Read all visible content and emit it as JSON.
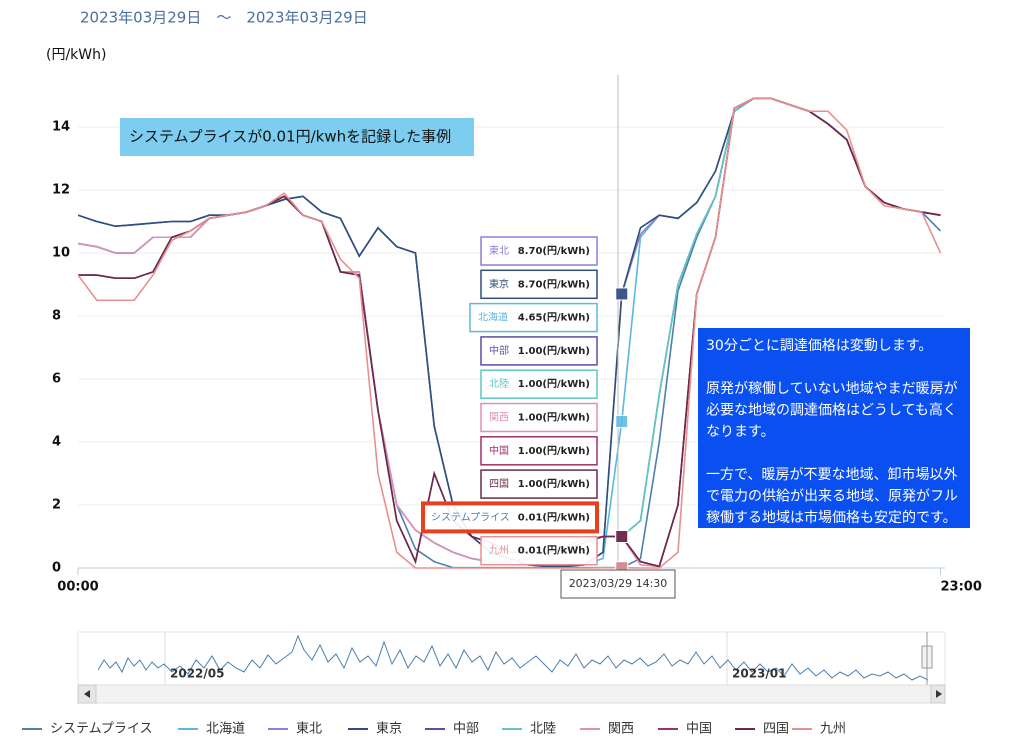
{
  "chart_data": {
    "type": "line",
    "date_range": "2023年03月29日　〜　2023年03月29日",
    "y_label": "(円/kWh)",
    "note": "システムプライスが0.01円/kwhを記録した事例",
    "explanation": [
      "30分ごとに調達価格は変動します。",
      "",
      "原発が稼働していない地域やまだ暖房が",
      "必要な地域の調達価格はどうしても高く",
      "なります。",
      "",
      "一方で、暖房が不要な地域、卸市場以外",
      "で電力の供給が出来る地域、原発がフル",
      "稼働する地域は市場価格も安定的です。"
    ],
    "tooltip_time": "2023/03/29 14:30",
    "navigator_labels": [
      "2022/05",
      "2023/01"
    ],
    "categories": [
      "00:00",
      null,
      null,
      null,
      null,
      null,
      null,
      null,
      null,
      null,
      null,
      null,
      null,
      null,
      null,
      null,
      null,
      null,
      null,
      null,
      null,
      null,
      null,
      null,
      null,
      null,
      null,
      null,
      null,
      null,
      null,
      null,
      null,
      null,
      null,
      null,
      null,
      null,
      null,
      null,
      null,
      null,
      null,
      null,
      null,
      null,
      "23:00"
    ],
    "ylim": [
      0,
      16
    ],
    "yticks": [
      0,
      2,
      4,
      6,
      8,
      10,
      12,
      14
    ],
    "grid": true,
    "series": [
      {
        "name": "システムプライス",
        "color": "#4a7fb0",
        "tooltip_label": "0.01(円/kWh)",
        "values": [
          10.3,
          10.2,
          10.0,
          10.0,
          10.5,
          10.5,
          10.5,
          11.1,
          11.2,
          11.3,
          11.5,
          11.8,
          11.2,
          11.0,
          9.4,
          9.4,
          5.0,
          2.0,
          0.6,
          0.2,
          0.01,
          0.01,
          0.01,
          0.01,
          0.01,
          0.01,
          0.01,
          0.01,
          0.01,
          0.01,
          0.3,
          4.0,
          8.8,
          10.5,
          11.8,
          14.5,
          14.9,
          14.9,
          14.7,
          14.5,
          14.1,
          13.6,
          12.1,
          11.6,
          11.4,
          11.3,
          10.7
        ]
      },
      {
        "name": "北海道",
        "color": "#5bb8e0",
        "tooltip_label": "4.65(円/kWh)",
        "values": [
          11.2,
          11.0,
          10.85,
          10.9,
          10.95,
          11.0,
          11.0,
          11.2,
          11.2,
          11.3,
          11.5,
          11.7,
          11.8,
          11.3,
          11.1,
          9.9,
          10.8,
          10.2,
          10.0,
          4.5,
          2.0,
          1.0,
          0.5,
          0.3,
          0.1,
          0.05,
          0.05,
          0.1,
          0.3,
          4.65,
          10.5,
          11.2,
          11.1,
          11.6,
          12.6,
          14.5,
          14.9,
          14.9,
          14.7,
          14.5,
          14.1,
          13.6,
          12.1,
          11.6,
          11.4,
          11.3,
          11.2
        ]
      },
      {
        "name": "東北",
        "color": "#8b7fd8",
        "tooltip_label": "8.70(円/kWh)",
        "values": [
          11.2,
          11.0,
          10.85,
          10.9,
          10.95,
          11.0,
          11.0,
          11.2,
          11.2,
          11.3,
          11.5,
          11.7,
          11.8,
          11.3,
          11.1,
          9.9,
          10.8,
          10.2,
          10.0,
          4.5,
          2.0,
          1.0,
          0.5,
          0.3,
          0.1,
          0.05,
          0.05,
          0.1,
          0.5,
          8.7,
          10.6,
          11.2,
          11.1,
          11.6,
          12.6,
          14.5,
          14.9,
          14.9,
          14.7,
          14.5,
          14.1,
          13.6,
          12.1,
          11.6,
          11.4,
          11.3,
          11.2
        ]
      },
      {
        "name": "東京",
        "color": "#2f4f7a",
        "tooltip_label": "8.70(円/kWh)",
        "values": [
          11.2,
          11.0,
          10.85,
          10.9,
          10.95,
          11.0,
          11.0,
          11.2,
          11.2,
          11.3,
          11.5,
          11.7,
          11.8,
          11.3,
          11.1,
          9.9,
          10.8,
          10.2,
          10.0,
          4.5,
          2.0,
          1.0,
          0.5,
          0.3,
          0.1,
          0.05,
          0.05,
          0.1,
          0.5,
          8.7,
          10.8,
          11.2,
          11.1,
          11.6,
          12.6,
          14.5,
          14.9,
          14.9,
          14.7,
          14.5,
          14.1,
          13.6,
          12.1,
          11.6,
          11.4,
          11.3,
          11.2
        ]
      },
      {
        "name": "中部",
        "color": "#5a4fa8",
        "tooltip_label": "1.00(円/kWh)",
        "values": [
          10.3,
          10.2,
          10.0,
          10.0,
          10.5,
          10.5,
          10.5,
          11.1,
          11.2,
          11.3,
          11.5,
          11.8,
          11.2,
          11.0,
          9.4,
          9.4,
          5.0,
          2.0,
          1.2,
          0.8,
          0.5,
          0.3,
          0.2,
          0.2,
          0.3,
          0.5,
          0.7,
          0.9,
          1.0,
          1.0,
          1.5,
          5.5,
          9.0,
          10.6,
          11.8,
          14.5,
          14.9,
          14.9,
          14.7,
          14.5,
          14.1,
          13.6,
          12.1,
          11.6,
          11.4,
          11.3,
          11.2
        ]
      },
      {
        "name": "北陸",
        "color": "#5fc8c0",
        "tooltip_label": "1.00(円/kWh)",
        "values": [
          10.3,
          10.2,
          10.0,
          10.0,
          10.5,
          10.5,
          10.5,
          11.1,
          11.2,
          11.3,
          11.5,
          11.8,
          11.2,
          11.0,
          9.4,
          9.4,
          5.0,
          2.0,
          1.2,
          0.8,
          0.5,
          0.3,
          0.2,
          0.2,
          0.3,
          0.5,
          0.7,
          0.9,
          1.0,
          1.0,
          1.5,
          5.5,
          9.0,
          10.6,
          11.8,
          14.5,
          14.9,
          14.9,
          14.7,
          14.5,
          14.1,
          13.6,
          12.1,
          11.6,
          11.4,
          11.3,
          11.2
        ]
      },
      {
        "name": "関西",
        "color": "#e090b8",
        "tooltip_label": "1.00(円/kWh)",
        "values": [
          10.3,
          10.2,
          10.0,
          10.0,
          10.5,
          10.5,
          10.5,
          11.1,
          11.2,
          11.3,
          11.5,
          11.8,
          11.2,
          11.0,
          9.4,
          9.4,
          5.0,
          2.0,
          1.2,
          0.8,
          0.5,
          0.3,
          0.2,
          0.2,
          0.3,
          0.5,
          0.7,
          0.9,
          1.0,
          1.0,
          0.1,
          0.05,
          2.0,
          8.7,
          10.5,
          14.6,
          14.9,
          14.9,
          14.7,
          14.5,
          14.1,
          13.6,
          12.1,
          11.6,
          11.4,
          11.3,
          11.2
        ]
      },
      {
        "name": "中国",
        "color": "#a0306a",
        "tooltip_label": "1.00(円/kWh)",
        "values": [
          9.3,
          9.3,
          9.2,
          9.2,
          9.4,
          10.5,
          10.7,
          11.1,
          11.2,
          11.3,
          11.5,
          11.8,
          11.2,
          11.0,
          9.4,
          9.3,
          5.0,
          1.5,
          0.2,
          3.0,
          1.5,
          1.0,
          0.8,
          0.5,
          0.5,
          0.5,
          0.6,
          0.8,
          1.0,
          1.0,
          0.2,
          0.05,
          2.0,
          8.7,
          10.5,
          14.6,
          14.9,
          14.9,
          14.7,
          14.5,
          14.1,
          13.6,
          12.1,
          11.6,
          11.4,
          11.3,
          11.2
        ]
      },
      {
        "name": "四国",
        "color": "#6a2a4a",
        "tooltip_label": "1.00(円/kWh)",
        "values": [
          9.3,
          9.3,
          9.2,
          9.2,
          9.4,
          10.5,
          10.7,
          11.1,
          11.2,
          11.3,
          11.5,
          11.8,
          11.2,
          11.0,
          9.4,
          9.3,
          5.0,
          1.5,
          0.2,
          3.0,
          1.5,
          1.0,
          0.8,
          0.5,
          0.5,
          0.5,
          0.6,
          0.8,
          1.0,
          1.0,
          0.2,
          0.05,
          2.0,
          8.7,
          10.5,
          14.6,
          14.9,
          14.9,
          14.7,
          14.5,
          14.1,
          13.6,
          12.1,
          11.6,
          11.4,
          11.3,
          11.2
        ]
      },
      {
        "name": "九州",
        "color": "#e89090",
        "tooltip_label": "0.01(円/kWh)",
        "values": [
          9.3,
          8.5,
          8.5,
          8.5,
          9.3,
          10.4,
          10.7,
          11.1,
          11.2,
          11.3,
          11.5,
          11.9,
          11.2,
          11.0,
          9.8,
          9.2,
          3.0,
          0.5,
          0,
          0,
          0,
          0,
          0,
          0,
          0,
          0,
          0,
          0,
          0.01,
          0.01,
          0,
          0,
          0.5,
          8.7,
          10.5,
          14.6,
          14.9,
          14.9,
          14.7,
          14.5,
          14.5,
          13.9,
          12.1,
          11.5,
          11.4,
          11.3,
          10.0
        ]
      }
    ]
  }
}
